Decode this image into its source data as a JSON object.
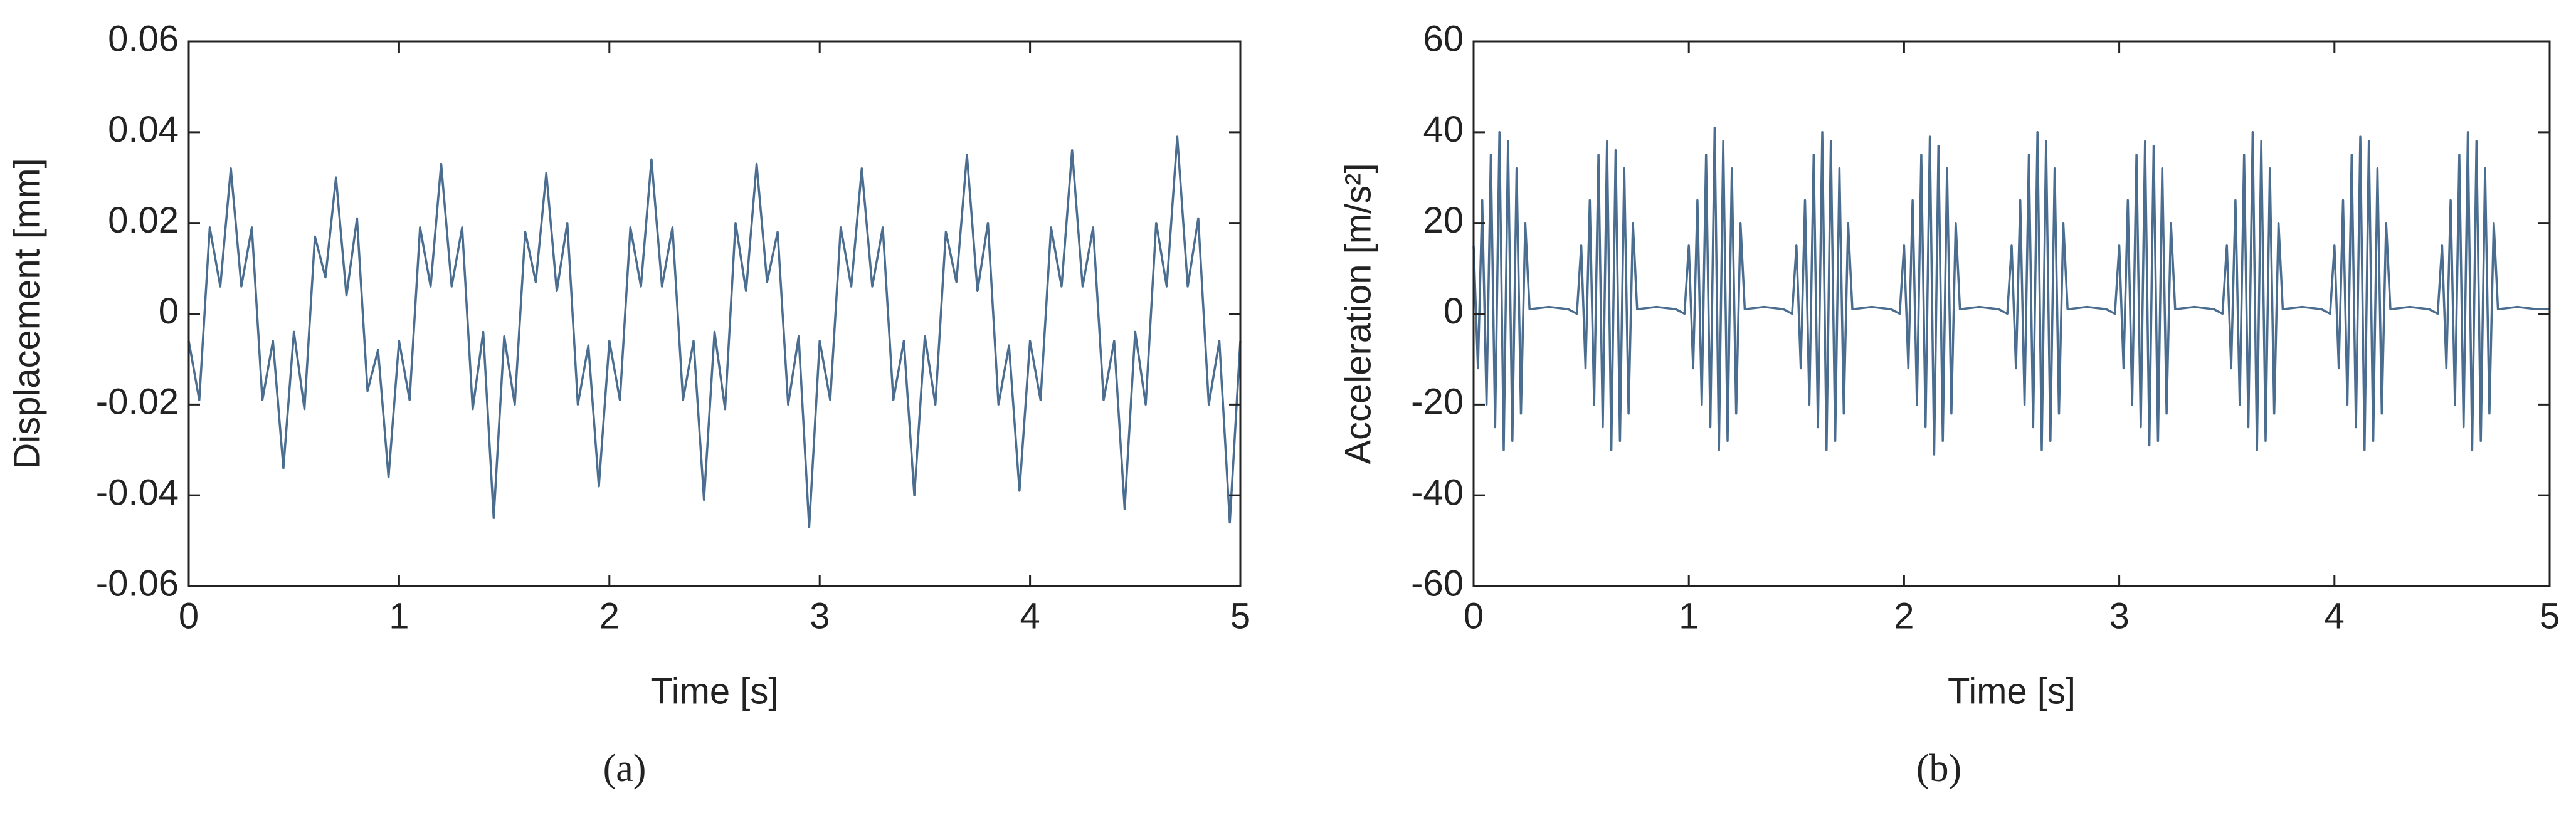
{
  "chart_data": [
    {
      "type": "line",
      "caption": "(a)",
      "xlabel": "Time [s]",
      "ylabel": "Displacement [mm]",
      "xlim": [
        0,
        5
      ],
      "xticks": [
        0,
        1,
        2,
        3,
        4,
        5
      ],
      "ylim": [
        -0.06,
        0.06
      ],
      "yticks": [
        -0.06,
        -0.04,
        -0.02,
        0,
        0.02,
        0.04,
        0.06
      ],
      "series": [
        {
          "color": "#4a6d90",
          "x": [
            0,
            0.05,
            0.1,
            0.15,
            0.2,
            0.25,
            0.3,
            0.35,
            0.4,
            0.45,
            0.5,
            0.55,
            0.6,
            0.65,
            0.7,
            0.75,
            0.8,
            0.85,
            0.9,
            0.95,
            1,
            1.05,
            1.1,
            1.15,
            1.2,
            1.25,
            1.3,
            1.35,
            1.4,
            1.45,
            1.5,
            1.55,
            1.6,
            1.65,
            1.7,
            1.75,
            1.8,
            1.85,
            1.9,
            1.95,
            2,
            2.05,
            2.1,
            2.15,
            2.2,
            2.25,
            2.3,
            2.35,
            2.4,
            2.45,
            2.5,
            2.55,
            2.6,
            2.65,
            2.7,
            2.75,
            2.8,
            2.85,
            2.9,
            2.95,
            3,
            3.05,
            3.1,
            3.15,
            3.2,
            3.25,
            3.3,
            3.35,
            3.4,
            3.45,
            3.5,
            3.55,
            3.6,
            3.65,
            3.7,
            3.75,
            3.8,
            3.85,
            3.9,
            3.95,
            4,
            4.05,
            4.1,
            4.15,
            4.2,
            4.25,
            4.3,
            4.35,
            4.4,
            4.45,
            4.5,
            4.55,
            4.6,
            4.65,
            4.7,
            4.75,
            4.8,
            4.85,
            4.9,
            4.95,
            5
          ],
          "values": [
            -0.006,
            -0.019,
            0.019,
            0.006,
            0.032,
            0.006,
            0.019,
            -0.019,
            -0.006,
            -0.034,
            -0.004,
            -0.021,
            0.017,
            0.008,
            0.03,
            0.004,
            0.021,
            -0.017,
            -0.008,
            -0.036,
            -0.006,
            -0.019,
            0.019,
            0.006,
            0.033,
            0.006,
            0.019,
            -0.021,
            -0.004,
            -0.045,
            -0.005,
            -0.02,
            0.018,
            0.007,
            0.031,
            0.005,
            0.02,
            -0.02,
            -0.007,
            -0.038,
            -0.006,
            -0.019,
            0.019,
            0.006,
            0.034,
            0.006,
            0.019,
            -0.019,
            -0.006,
            -0.041,
            -0.004,
            -0.021,
            0.02,
            0.005,
            0.033,
            0.007,
            0.018,
            -0.02,
            -0.005,
            -0.047,
            -0.006,
            -0.019,
            0.019,
            0.006,
            0.032,
            0.006,
            0.019,
            -0.019,
            -0.006,
            -0.04,
            -0.005,
            -0.02,
            0.018,
            0.007,
            0.035,
            0.005,
            0.02,
            -0.02,
            -0.007,
            -0.039,
            -0.006,
            -0.019,
            0.019,
            0.006,
            0.036,
            0.006,
            0.019,
            -0.019,
            -0.006,
            -0.043,
            -0.004,
            -0.02,
            0.02,
            0.006,
            0.039,
            0.006,
            0.021,
            -0.02,
            -0.006,
            -0.046,
            -0.006
          ]
        }
      ]
    },
    {
      "type": "line",
      "caption": "(b)",
      "xlabel": "Time [s]",
      "ylabel": "Acceleration [m/s²]",
      "xlim": [
        0,
        5
      ],
      "xticks": [
        0,
        1,
        2,
        3,
        4,
        5
      ],
      "ylim": [
        -60,
        60
      ],
      "yticks": [
        -60,
        -40,
        -20,
        0,
        20,
        40,
        60
      ],
      "series": [
        {
          "color": "#4a6d90",
          "x": [
            0,
            0.02,
            0.04,
            0.06,
            0.08,
            0.1,
            0.12,
            0.14,
            0.16,
            0.18,
            0.2,
            0.22,
            0.24,
            0.26,
            0.35,
            0.44,
            0.48,
            0.5,
            0.52,
            0.54,
            0.56,
            0.58,
            0.6,
            0.62,
            0.64,
            0.66,
            0.68,
            0.7,
            0.72,
            0.74,
            0.76,
            0.85,
            0.94,
            0.98,
            1,
            1.02,
            1.04,
            1.06,
            1.08,
            1.1,
            1.12,
            1.14,
            1.16,
            1.18,
            1.2,
            1.22,
            1.24,
            1.26,
            1.35,
            1.44,
            1.48,
            1.5,
            1.52,
            1.54,
            1.56,
            1.58,
            1.6,
            1.62,
            1.64,
            1.66,
            1.68,
            1.7,
            1.72,
            1.74,
            1.76,
            1.85,
            1.94,
            1.98,
            2,
            2.02,
            2.04,
            2.06,
            2.08,
            2.1,
            2.12,
            2.14,
            2.16,
            2.18,
            2.2,
            2.22,
            2.24,
            2.26,
            2.35,
            2.44,
            2.48,
            2.5,
            2.52,
            2.54,
            2.56,
            2.58,
            2.6,
            2.62,
            2.64,
            2.66,
            2.68,
            2.7,
            2.72,
            2.74,
            2.76,
            2.85,
            2.94,
            2.98,
            3,
            3.02,
            3.04,
            3.06,
            3.08,
            3.1,
            3.12,
            3.14,
            3.16,
            3.18,
            3.2,
            3.22,
            3.24,
            3.26,
            3.35,
            3.44,
            3.48,
            3.5,
            3.52,
            3.54,
            3.56,
            3.58,
            3.6,
            3.62,
            3.64,
            3.66,
            3.68,
            3.7,
            3.72,
            3.74,
            3.76,
            3.85,
            3.94,
            3.98,
            4,
            4.02,
            4.04,
            4.06,
            4.08,
            4.1,
            4.12,
            4.14,
            4.16,
            4.18,
            4.2,
            4.22,
            4.24,
            4.26,
            4.35,
            4.44,
            4.48,
            4.5,
            4.52,
            4.54,
            4.56,
            4.58,
            4.6,
            4.62,
            4.64,
            4.66,
            4.68,
            4.7,
            4.72,
            4.74,
            4.76,
            4.85,
            4.94,
            5
          ],
          "values": [
            15,
            -12,
            25,
            -20,
            35,
            -25,
            40,
            -30,
            38,
            -28,
            32,
            -22,
            20,
            1,
            1.5,
            1,
            0,
            15,
            -12,
            25,
            -20,
            35,
            -25,
            38,
            -30,
            36,
            -28,
            32,
            -22,
            20,
            1,
            1.5,
            1,
            0,
            15,
            -12,
            25,
            -20,
            35,
            -25,
            41,
            -30,
            38,
            -28,
            32,
            -22,
            20,
            1,
            1.5,
            1,
            0,
            15,
            -12,
            25,
            -20,
            35,
            -25,
            40,
            -30,
            38,
            -28,
            32,
            -22,
            20,
            1,
            1.5,
            1,
            0,
            15,
            -12,
            25,
            -20,
            35,
            -25,
            39,
            -31,
            37,
            -28,
            32,
            -22,
            20,
            1,
            1.5,
            1,
            0,
            15,
            -12,
            25,
            -20,
            35,
            -25,
            40,
            -30,
            38,
            -28,
            32,
            -22,
            20,
            1,
            1.5,
            1,
            0,
            15,
            -12,
            25,
            -20,
            35,
            -25,
            38,
            -29,
            37,
            -28,
            32,
            -22,
            20,
            1,
            1.5,
            1,
            0,
            15,
            -12,
            25,
            -20,
            35,
            -25,
            40,
            -30,
            38,
            -28,
            32,
            -22,
            20,
            1,
            1.5,
            1,
            0,
            15,
            -12,
            25,
            -20,
            35,
            -25,
            39,
            -30,
            38,
            -28,
            32,
            -22,
            20,
            1,
            1.5,
            1,
            0,
            15,
            -12,
            25,
            -20,
            35,
            -25,
            40,
            -30,
            38,
            -28,
            32,
            -22,
            20,
            1,
            1.5,
            1,
            1
          ]
        }
      ]
    }
  ]
}
